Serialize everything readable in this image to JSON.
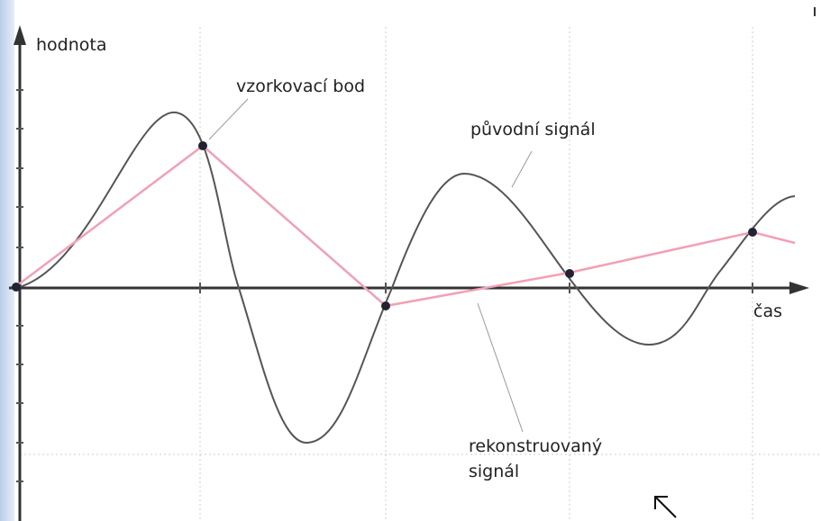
{
  "axes": {
    "y_label": "hodnota",
    "x_label": "čas"
  },
  "labels": {
    "sample_point": "vzorkovací bod",
    "original": "původní signál",
    "reconstructed": [
      "rekonstruovaný",
      "signál"
    ]
  }
}
